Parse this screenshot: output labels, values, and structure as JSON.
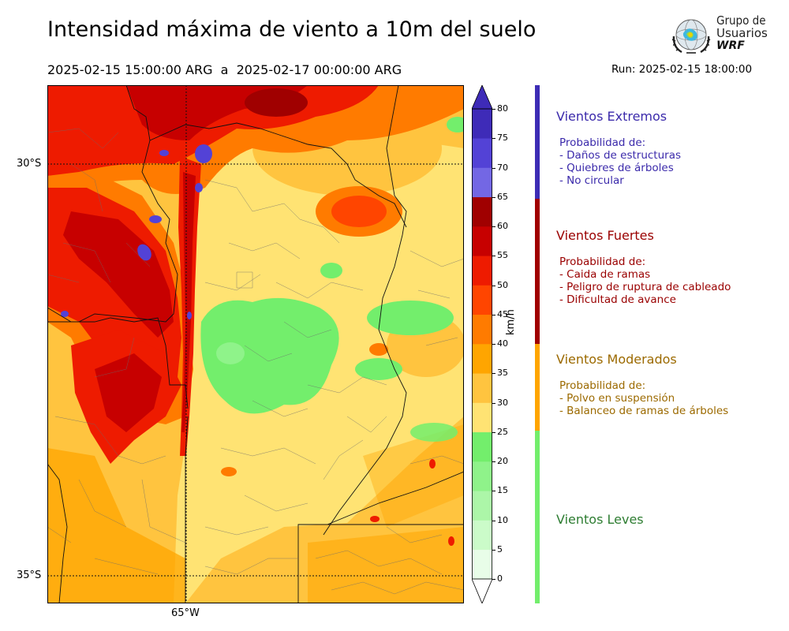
{
  "header": {
    "title": "Intensidad máxima de viento a 10m del suelo",
    "period": "2025-02-15 15:00:00 ARG  a  2025-02-17 00:00:00 ARG",
    "run": "Run: 2025-02-15 18:00:00"
  },
  "logo": {
    "line1": "Grupo de",
    "line2": "Usuarios",
    "line3": "WRF"
  },
  "map": {
    "lat_labels": [
      "30°S",
      "35°S"
    ],
    "lon_labels": [
      "65°W"
    ],
    "lat_values": [
      -30,
      -35
    ],
    "lon_values": [
      -65
    ]
  },
  "colorbar": {
    "unit": "km/h",
    "ticks": [
      "0",
      "5",
      "10",
      "15",
      "20",
      "25",
      "30",
      "35",
      "40",
      "45",
      "50",
      "55",
      "60",
      "65",
      "70",
      "75",
      "80"
    ],
    "levels": [
      0,
      5,
      10,
      15,
      20,
      25,
      30,
      35,
      40,
      45,
      50,
      55,
      60,
      65,
      70,
      75,
      80
    ],
    "colors": [
      "#e8fde8",
      "#cbfbc9",
      "#acf6a8",
      "#8ff38a",
      "#73ee6c",
      "#ffe373",
      "#ffc43f",
      "#ffa500",
      "#ff7b00",
      "#ff4500",
      "#ee1b00",
      "#c70000",
      "#a00000",
      "#7367e4",
      "#5342d6",
      "#3e2bb8"
    ]
  },
  "categories": [
    {
      "name": "Vientos Extremos",
      "color": "#3b2aab",
      "lines": [
        "Probabilidad de:",
        "- Daños de estructuras",
        "- Quiebres de árboles",
        "- No circular"
      ]
    },
    {
      "name": "Vientos Fuertes",
      "color": "#9a0000",
      "lines": [
        "Probabilidad de:",
        "- Caida de ramas",
        "- Peligro de ruptura de cableado",
        "- Dificultad de avance"
      ]
    },
    {
      "name": "Vientos Moderados",
      "color": "#9c6a00",
      "lines": [
        "Probabilidad de:",
        "- Polvo en suspensión",
        "- Balanceo de ramas de árboles"
      ]
    },
    {
      "name": "Vientos Leves",
      "color": "#2e7d32",
      "lines": []
    }
  ],
  "category_bar_colors": [
    "#3d2cb5",
    "#a00000",
    "#ffa500",
    "#73ee6c"
  ]
}
